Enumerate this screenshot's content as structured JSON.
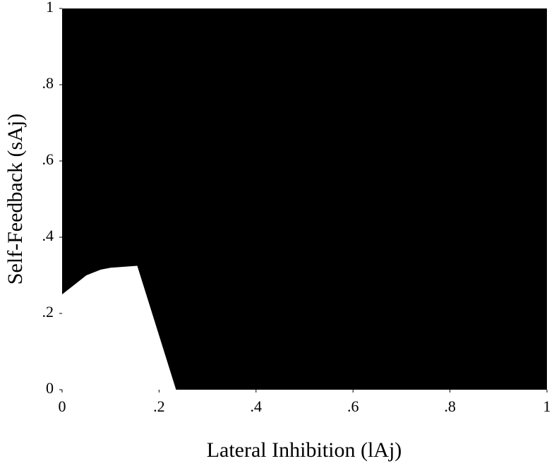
{
  "chart_data": {
    "type": "area",
    "x_label": "Lateral Inhibition (lAj)",
    "y_label": "Self-Feedback (sAj)",
    "x": [
      0,
      0.02,
      0.05,
      0.08,
      0.1,
      0.155,
      0.235
    ],
    "values": [
      0.25,
      0.27,
      0.3,
      0.315,
      0.32,
      0.325,
      0
    ],
    "color": "#ffffff",
    "background": "#000000",
    "xlim": [
      0,
      1
    ],
    "ylim": [
      0,
      1
    ],
    "xticks": [
      0,
      {
        "value": 0.2,
        "label": ".2"
      },
      {
        "value": 0.4,
        "label": ".4"
      },
      {
        "value": 0.6,
        "label": ".6"
      },
      {
        "value": 0.8,
        "label": ".8"
      },
      1
    ],
    "yticks": [
      0,
      {
        "value": 0.2,
        "label": ".2"
      },
      {
        "value": 0.4,
        "label": ".4"
      },
      {
        "value": 0.6,
        "label": ".6"
      },
      {
        "value": 0.8,
        "label": ".8"
      },
      1
    ],
    "grid": false
  }
}
